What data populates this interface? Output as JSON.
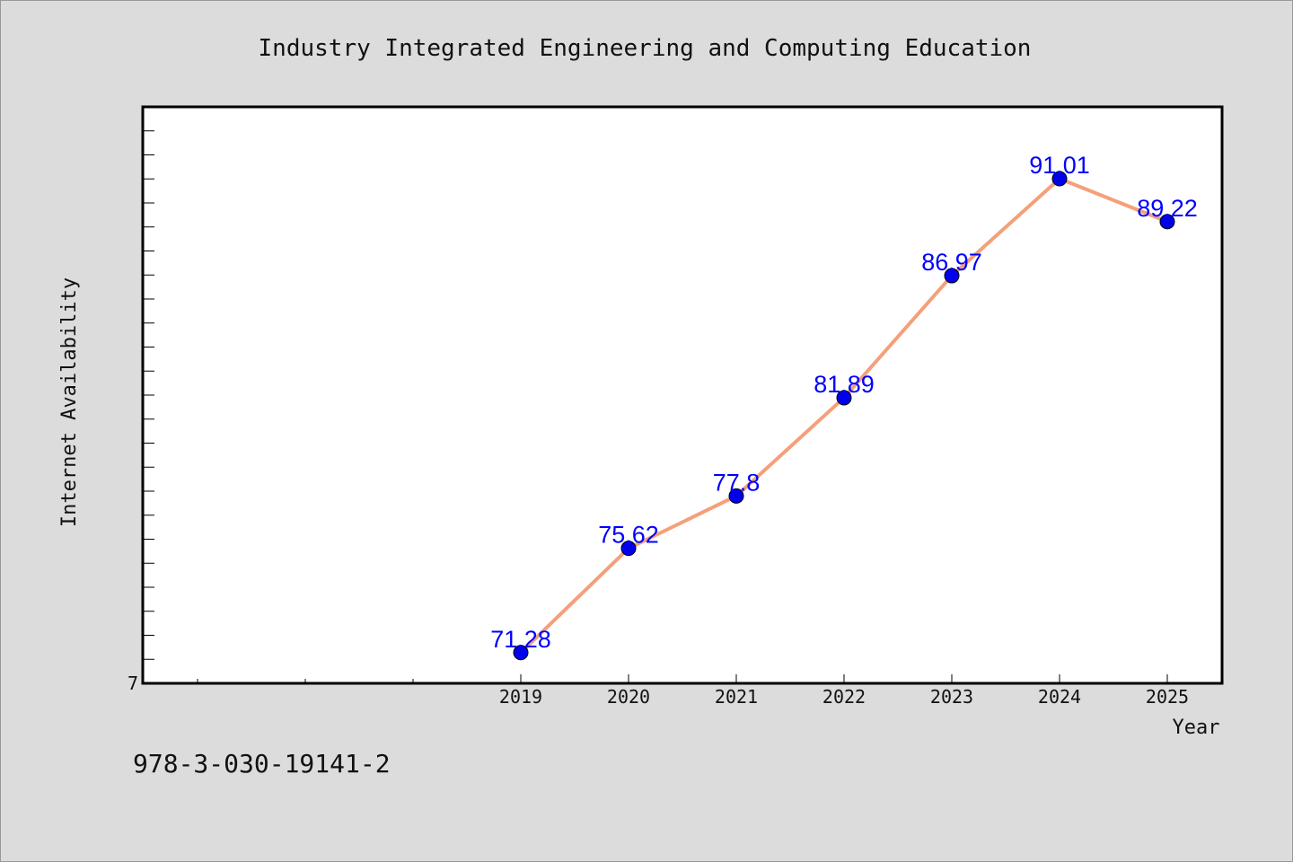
{
  "chart_data": {
    "type": "line",
    "title": "Industry Integrated Engineering and Computing Education",
    "xlabel": "Year",
    "ylabel": "Internet Availability",
    "y_tick_labels": [
      "7"
    ],
    "x": [
      "2019",
      "2020",
      "2021",
      "2022",
      "2023",
      "2024",
      "2025"
    ],
    "series": [
      {
        "values": [
          71.28,
          75.62,
          77.8,
          81.89,
          86.97,
          91.01,
          89.22
        ],
        "data_labels": [
          "71.28",
          "75.62",
          "77.8",
          "81.89",
          "86.97",
          "91.01",
          "89.22"
        ],
        "line_color": "#f4a07a",
        "marker_color": "#0000ee"
      }
    ],
    "ylim": [
      70,
      94
    ],
    "grid": false,
    "legend": "none",
    "background_color": "#dcdcdc",
    "plot_background_color": "#ffffff"
  },
  "footer": {
    "isbn": "978-3-030-19141-2"
  }
}
